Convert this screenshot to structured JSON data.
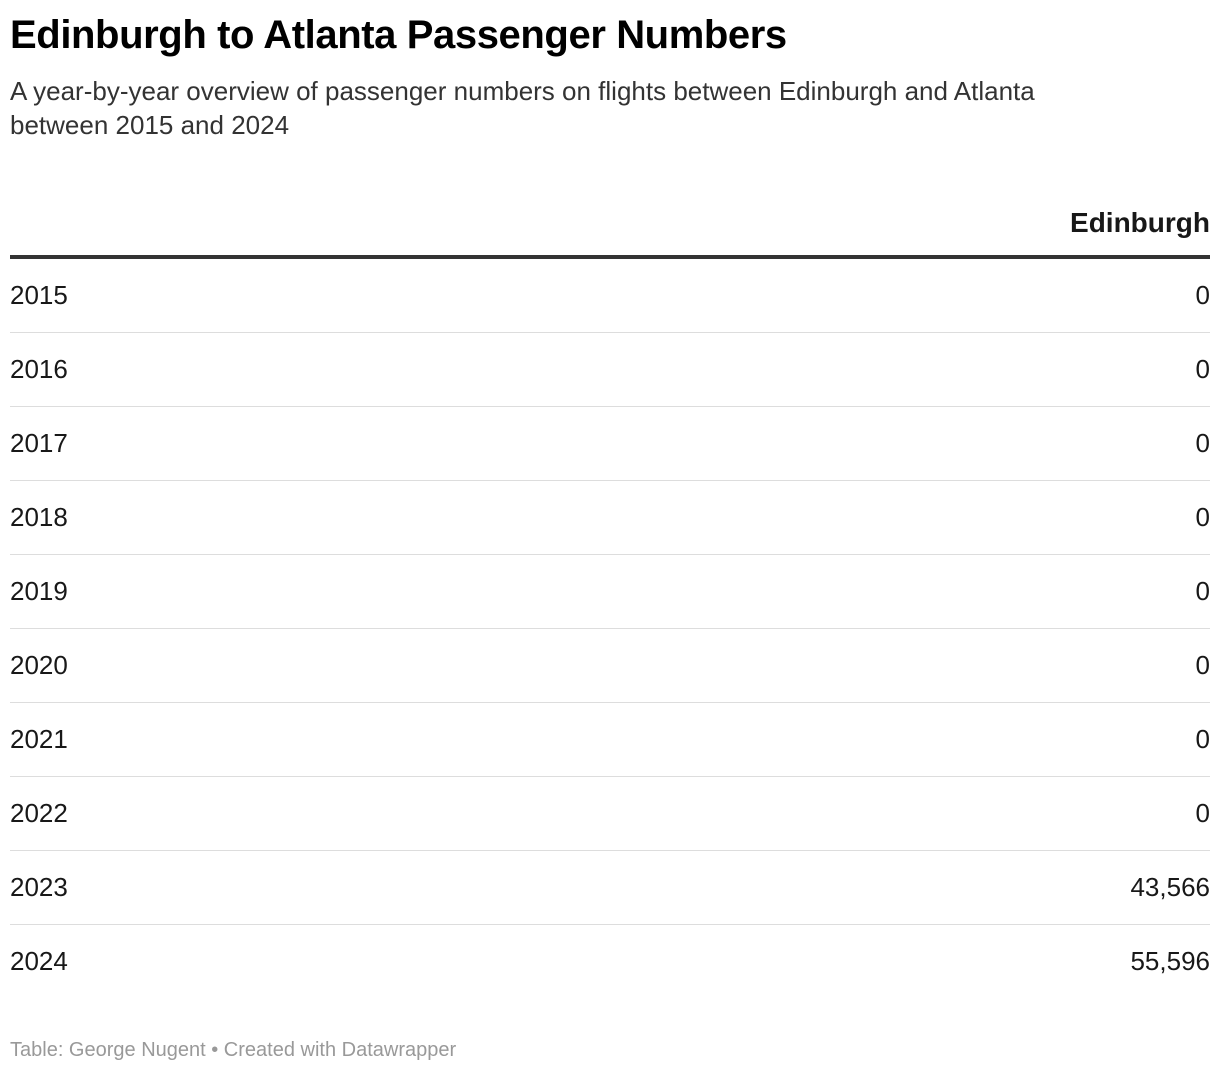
{
  "header": {
    "title": "Edinburgh to Atlanta Passenger Numbers",
    "subtitle": "A year-by-year overview of passenger numbers on flights between Edinburgh and Atlanta between 2015 and 2024"
  },
  "chart_data": {
    "type": "table",
    "columns": [
      "",
      "Edinburgh"
    ],
    "rows": [
      {
        "year": "2015",
        "value": "0"
      },
      {
        "year": "2016",
        "value": "0"
      },
      {
        "year": "2017",
        "value": "0"
      },
      {
        "year": "2018",
        "value": "0"
      },
      {
        "year": "2019",
        "value": "0"
      },
      {
        "year": "2020",
        "value": "0"
      },
      {
        "year": "2021",
        "value": "0"
      },
      {
        "year": "2022",
        "value": "0"
      },
      {
        "year": "2023",
        "value": "43,566"
      },
      {
        "year": "2024",
        "value": "55,596"
      }
    ]
  },
  "footer": {
    "text": "Table: George Nugent • Created with Datawrapper"
  },
  "colors": {
    "text": "#181818",
    "header_rule": "#333333",
    "row_rule": "#dddddd",
    "footer": "#999999"
  }
}
